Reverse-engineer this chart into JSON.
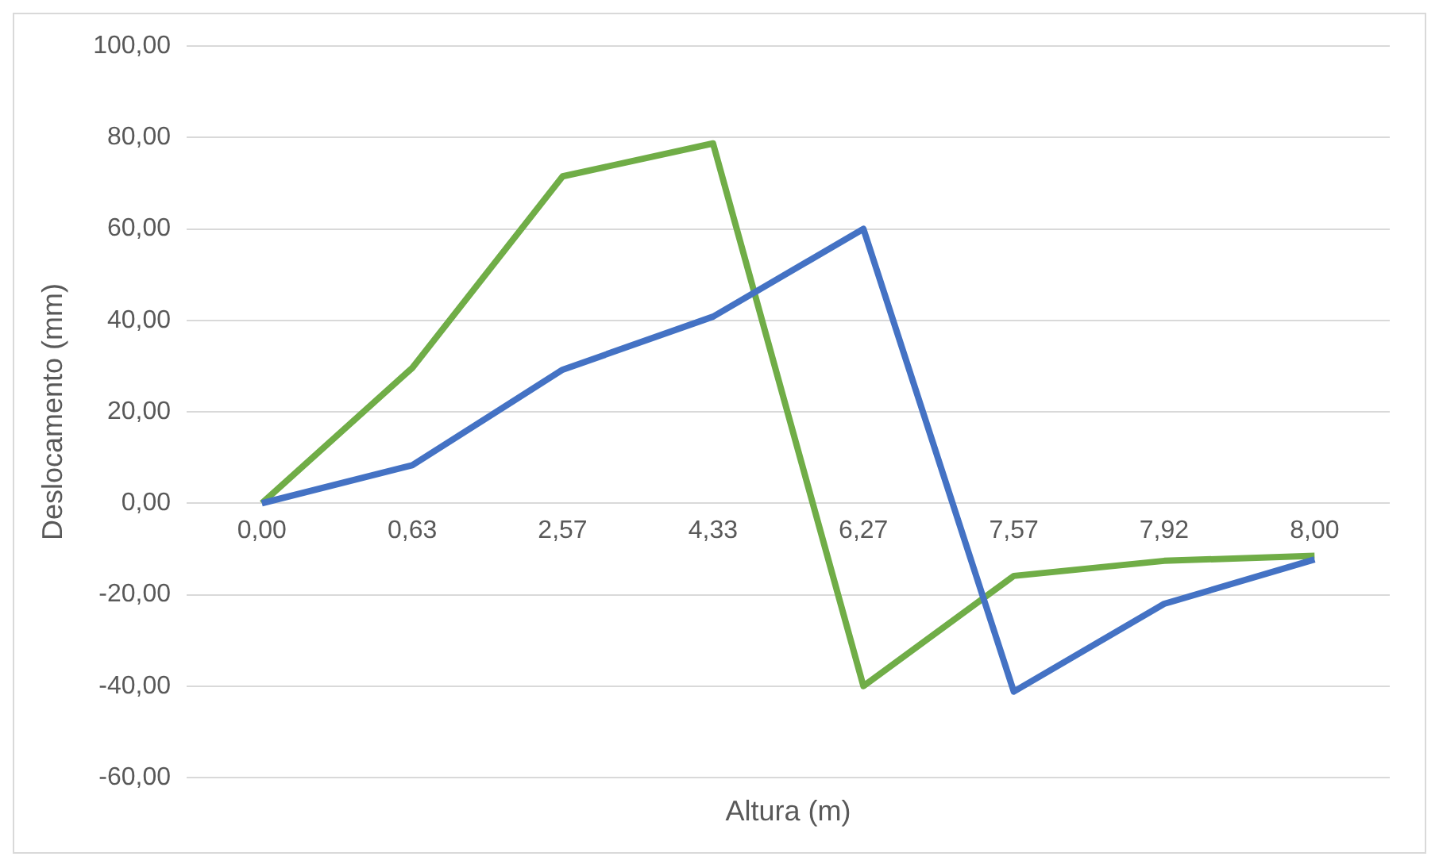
{
  "chart_data": {
    "type": "line",
    "xlabel": "Altura (m)",
    "ylabel": "Deslocamento (mm)",
    "categories": [
      "0,00",
      "0,63",
      "2,57",
      "4,33",
      "6,27",
      "7,57",
      "7,92",
      "8,00"
    ],
    "series": [
      {
        "color": "#4472c4",
        "values": [
          0,
          8.3,
          29.2,
          40.8,
          60,
          -41.2,
          -22,
          -12.3
        ]
      },
      {
        "color": "#70ad47",
        "values": [
          0,
          29.6,
          71.5,
          78.7,
          -40,
          -15.9,
          -12.6,
          -11.5
        ]
      }
    ],
    "ylim": [
      -60,
      100
    ],
    "yticks": [
      {
        "value": -60,
        "label": "-60,00"
      },
      {
        "value": -40,
        "label": "-40,00"
      },
      {
        "value": -20,
        "label": "-20,00"
      },
      {
        "value": 0,
        "label": "0,00"
      },
      {
        "value": 20,
        "label": "20,00"
      },
      {
        "value": 40,
        "label": "40,00"
      },
      {
        "value": 60,
        "label": "60,00"
      },
      {
        "value": 80,
        "label": "80,00"
      },
      {
        "value": 100,
        "label": "100,00"
      }
    ],
    "grid": "y",
    "legend": false,
    "marker": "none",
    "line_style": "solid"
  }
}
